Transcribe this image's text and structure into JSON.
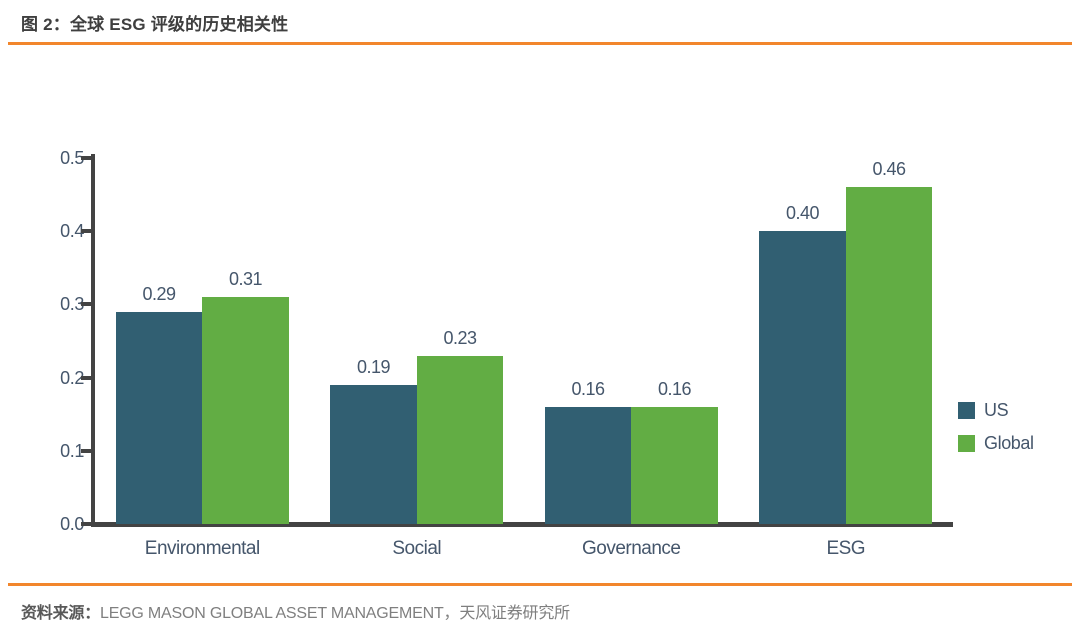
{
  "figure": {
    "title": "图 2：全球 ESG 评级的历史相关性",
    "source_prefix": "资料来源：",
    "source_text": "LEGG MASON GLOBAL ASSET MANAGEMENT，天风证券研究所",
    "accent_color": "#f2862c"
  },
  "chart_data": {
    "type": "bar",
    "title": "全球 ESG 评级的历史相关性",
    "categories": [
      "Environmental",
      "Social",
      "Governance",
      "ESG"
    ],
    "series": [
      {
        "name": "US",
        "color": "#315f72",
        "values": [
          0.29,
          0.19,
          0.16,
          0.4
        ]
      },
      {
        "name": "Global",
        "color": "#62ad44",
        "values": [
          0.31,
          0.23,
          0.16,
          0.46
        ]
      }
    ],
    "xlabel": "",
    "ylabel": "",
    "ylim": [
      0,
      0.5
    ],
    "yticks": [
      "0.0",
      "0.1",
      "0.2",
      "0.3",
      "0.4",
      "0.5"
    ],
    "grid": false,
    "legend_position": "right",
    "value_label_format": "0.00",
    "axis_color": "#434343",
    "text_color": "#45566b"
  }
}
